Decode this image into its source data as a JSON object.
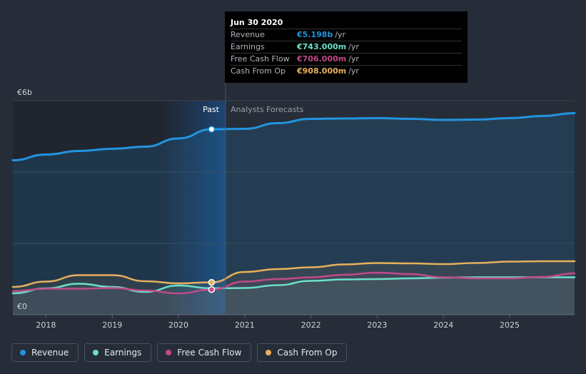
{
  "colors": {
    "revenue": "#2394df",
    "earnings": "#6ce0c9",
    "free_cash_flow": "#c04a8a",
    "cash_from_op": "#e8b05c",
    "past_shade": "#1a5fa8"
  },
  "tooltip": {
    "date": "Jun 30 2020",
    "rows": [
      {
        "label": "Revenue",
        "value": "€5.198b",
        "unit": "/yr"
      },
      {
        "label": "Earnings",
        "value": "€743.000m",
        "unit": "/yr"
      },
      {
        "label": "Free Cash Flow",
        "value": "€706.000m",
        "unit": "/yr"
      },
      {
        "label": "Cash From Op",
        "value": "€908.000m",
        "unit": "/yr"
      }
    ]
  },
  "legend": [
    {
      "label": "Revenue",
      "color_key": "revenue"
    },
    {
      "label": "Earnings",
      "color_key": "earnings"
    },
    {
      "label": "Free Cash Flow",
      "color_key": "free_cash_flow"
    },
    {
      "label": "Cash From Op",
      "color_key": "cash_from_op"
    }
  ],
  "chart_data": {
    "type": "area",
    "title": "",
    "y_unit": "€b",
    "ylim": [
      0,
      6
    ],
    "y_tick_labels": [
      {
        "value": 6,
        "label": "€6b"
      },
      {
        "value": 0,
        "label": "€0"
      }
    ],
    "gridlines": [
      0,
      2,
      4,
      6
    ],
    "xlim": [
      2017.5,
      2025.98
    ],
    "x_ticks": [
      2018,
      2019,
      2020,
      2021,
      2022,
      2023,
      2024,
      2025
    ],
    "divider_x": 2020.5,
    "past_label": "Past",
    "forecast_label": "Analysts Forecasts",
    "series": [
      {
        "name": "Revenue",
        "key": "revenue",
        "x": [
          2017.5,
          2018.0,
          2018.5,
          2019.0,
          2019.5,
          2020.0,
          2020.5,
          2021.0,
          2021.5,
          2022.0,
          2022.5,
          2023.0,
          2023.5,
          2024.0,
          2024.5,
          2025.0,
          2025.5,
          2025.98
        ],
        "values": [
          4.33,
          4.49,
          4.59,
          4.65,
          4.71,
          4.94,
          5.198,
          5.21,
          5.37,
          5.49,
          5.5,
          5.51,
          5.49,
          5.46,
          5.47,
          5.51,
          5.57,
          5.65
        ]
      },
      {
        "name": "Earnings",
        "key": "earnings",
        "x": [
          2017.5,
          2018.0,
          2018.5,
          2019.0,
          2019.5,
          2020.0,
          2020.5,
          2021.0,
          2021.5,
          2022.0,
          2022.5,
          2023.0,
          2023.5,
          2024.0,
          2024.5,
          2025.0,
          2025.5,
          2025.98
        ],
        "values": [
          0.6,
          0.74,
          0.87,
          0.78,
          0.64,
          0.82,
          0.743,
          0.75,
          0.83,
          0.95,
          0.99,
          1.0,
          1.02,
          1.04,
          1.05,
          1.05,
          1.05,
          1.05
        ]
      },
      {
        "name": "Free Cash Flow",
        "key": "free_cash_flow",
        "x": [
          2017.5,
          2018.0,
          2018.5,
          2019.0,
          2019.5,
          2020.0,
          2020.5,
          2021.0,
          2021.5,
          2022.0,
          2022.5,
          2023.0,
          2023.5,
          2024.0,
          2024.5,
          2025.0,
          2025.5,
          2025.98
        ],
        "values": [
          0.66,
          0.73,
          0.73,
          0.75,
          0.68,
          0.6,
          0.706,
          0.93,
          1.0,
          1.05,
          1.12,
          1.18,
          1.14,
          1.05,
          1.02,
          1.02,
          1.06,
          1.16
        ]
      },
      {
        "name": "Cash From Op",
        "key": "cash_from_op",
        "x": [
          2017.5,
          2018.0,
          2018.5,
          2019.0,
          2019.5,
          2020.0,
          2020.5,
          2021.0,
          2021.5,
          2022.0,
          2022.5,
          2023.0,
          2023.5,
          2024.0,
          2024.5,
          2025.0,
          2025.5,
          2025.98
        ],
        "values": [
          0.78,
          0.93,
          1.11,
          1.11,
          0.94,
          0.88,
          0.908,
          1.2,
          1.28,
          1.33,
          1.41,
          1.45,
          1.44,
          1.42,
          1.45,
          1.49,
          1.5,
          1.5
        ]
      }
    ]
  }
}
